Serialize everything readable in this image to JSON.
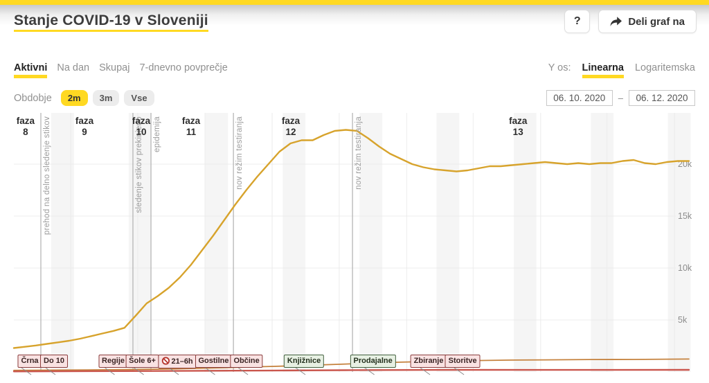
{
  "header": {
    "title": "Stanje COVID-19 v Sloveniji",
    "help_button": "?",
    "share_button": "Deli graf na"
  },
  "tabs": {
    "items": [
      {
        "label": "Aktivni",
        "active": true
      },
      {
        "label": "Na dan",
        "active": false
      },
      {
        "label": "Skupaj",
        "active": false
      },
      {
        "label": "7-dnevno povprečje",
        "active": false
      }
    ]
  },
  "y_axis": {
    "label": "Y os:",
    "options": [
      {
        "label": "Linearna",
        "active": true
      },
      {
        "label": "Logaritemska",
        "active": false
      }
    ]
  },
  "period": {
    "label": "Obdobje",
    "options": [
      {
        "label": "2m",
        "active": true
      },
      {
        "label": "3m",
        "active": false
      },
      {
        "label": "Vse",
        "active": false
      }
    ]
  },
  "date_range": {
    "from": "06. 10. 2020",
    "separator": "–",
    "to": "06. 12. 2020"
  },
  "chart_data": {
    "type": "line",
    "x_start_label": "06. 10. 2020",
    "x_end_label": "06. 12. 2020",
    "days_total": 61,
    "ylim": [
      0,
      25000
    ],
    "grid": true,
    "y_ticks": [
      {
        "value": 5000,
        "label": "5k"
      },
      {
        "value": 10000,
        "label": "10k"
      },
      {
        "value": 15000,
        "label": "15k"
      },
      {
        "value": 20000,
        "label": "20k"
      }
    ],
    "series": [
      {
        "id": "secondary-line",
        "color": "#c5823e",
        "width": 1.8,
        "points": [
          [
            0,
            150
          ],
          [
            5,
            180
          ],
          [
            10,
            220
          ],
          [
            15,
            300
          ],
          [
            20,
            430
          ],
          [
            25,
            580
          ],
          [
            30,
            760
          ],
          [
            35,
            940
          ],
          [
            40,
            1070
          ],
          [
            45,
            1140
          ],
          [
            48,
            1160
          ],
          [
            52,
            1190
          ],
          [
            56,
            1200
          ],
          [
            61,
            1240
          ]
        ]
      },
      {
        "id": "tertiary-line",
        "color": "#ca564d",
        "width": 2.4,
        "points": [
          [
            0,
            50
          ],
          [
            10,
            80
          ],
          [
            20,
            120
          ],
          [
            30,
            170
          ],
          [
            40,
            200
          ],
          [
            50,
            190
          ],
          [
            61,
            200
          ]
        ]
      },
      {
        "id": "active-cases-line",
        "color": "#d7a32c",
        "width": 2.4,
        "daily_values": [
          2300,
          2420,
          2550,
          2700,
          2850,
          3000,
          3200,
          3450,
          3700,
          3950,
          4250,
          5400,
          6600,
          7300,
          8100,
          9100,
          10300,
          11700,
          13100,
          14600,
          16100,
          17500,
          18800,
          20000,
          21200,
          22000,
          22300,
          22300,
          22800,
          23200,
          23300,
          23200,
          22500,
          21700,
          21000,
          20500,
          20000,
          19700,
          19500,
          19400,
          19300,
          19400,
          19600,
          19800,
          19800,
          19900,
          20000,
          20100,
          20200,
          20100,
          20000,
          20100,
          20000,
          20100,
          20100,
          20300,
          20400,
          20100,
          20000,
          20200,
          20300,
          20300
        ]
      }
    ],
    "phase_lines": [
      {
        "day": 2.44,
        "label": "prehod na delno sledenje stikov"
      },
      {
        "day": 10.76,
        "label": "sledenje stikov prekinjeno"
      },
      {
        "day": 12.39,
        "label": "epidemija"
      },
      {
        "day": 19.84,
        "label": "nov režim testiranja"
      },
      {
        "day": 30.6,
        "label": "nov režim testiranja"
      }
    ],
    "phase_labels": [
      {
        "word": "faza",
        "number": "8",
        "day": 1.06
      },
      {
        "word": "faza",
        "number": "9",
        "day": 6.38
      },
      {
        "word": "faza",
        "number": "10",
        "day": 11.51
      },
      {
        "word": "faza",
        "number": "11",
        "day": 16.02
      },
      {
        "word": "faza",
        "number": "12",
        "day": 25.03
      },
      {
        "word": "faza",
        "number": "13",
        "day": 45.56
      }
    ],
    "events": [
      {
        "label": "Črna",
        "kind": "restriction",
        "day": 1.44
      },
      {
        "label": "Do 10",
        "kind": "restriction",
        "day": 3.63
      },
      {
        "label": "Regije",
        "kind": "restriction",
        "day": 8.98
      },
      {
        "label": "Šole 6+",
        "kind": "restriction",
        "day": 11.61
      },
      {
        "label": "21–6h",
        "kind": "restriction",
        "icon": "no-entry",
        "day": 14.77
      },
      {
        "label": "Gostilne",
        "kind": "restriction",
        "day": 18.05
      },
      {
        "label": "Občine",
        "kind": "restriction",
        "day": 21.03
      },
      {
        "label": "Knjižnice",
        "kind": "relaxation",
        "day": 26.22
      },
      {
        "label": "Prodajalne",
        "kind": "relaxation",
        "day": 32.45
      },
      {
        "label": "Zbiranje",
        "kind": "restriction",
        "day": 37.48
      },
      {
        "label": "Storitve",
        "kind": "restriction",
        "day": 40.55
      }
    ],
    "weekend_band_start_days": [
      3.38,
      10.38,
      17.3,
      24.3,
      31.24,
      38.2,
      45.17,
      52.14,
      59.1
    ],
    "weekend_band_width_days": 2.05,
    "x_gridline_days": [
      5.13,
      11.2,
      17.27,
      23.34,
      29.4,
      35.5,
      41.5,
      47.6,
      53.6,
      59.7
    ],
    "colors": {
      "accent_yellow": "#ffd922",
      "restriction_bg": "#f9e2e2",
      "restriction_border": "#8a3c3c",
      "relaxation_bg": "#e7f0e3",
      "relaxation_border": "#42603e",
      "phase_line": "#b0b0b0",
      "phase_text": "#9b9b9b",
      "grid": "#ececec",
      "weekend_band": "#f5f5f5",
      "tick_label": "#8c8c8c",
      "connector": "#8a8a8a"
    }
  }
}
